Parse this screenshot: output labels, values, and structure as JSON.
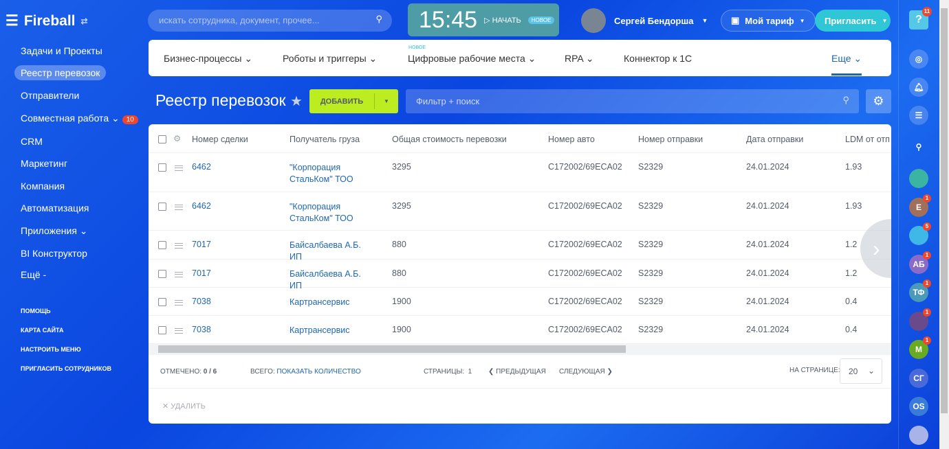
{
  "app": {
    "logo": "Fireball"
  },
  "sidebar": {
    "items": [
      {
        "label": "Задачи и Проекты"
      },
      {
        "label": "Реестр перевозок"
      },
      {
        "label": "Отправители"
      },
      {
        "label": "Совместная работа",
        "badge": "10"
      },
      {
        "label": "CRM"
      },
      {
        "label": "Маркетинг"
      },
      {
        "label": "Компания"
      },
      {
        "label": "Автоматизация"
      },
      {
        "label": "Приложения"
      },
      {
        "label": "BI Конструктор"
      },
      {
        "label": "Ещё -"
      }
    ],
    "links": [
      "ПОМОЩЬ",
      "КАРТА САЙТА",
      "НАСТРОИТЬ МЕНЮ",
      "ПРИГЛАСИТЬ СОТРУДНИКОВ"
    ]
  },
  "header": {
    "search_placeholder": "искать сотрудника, документ, прочее...",
    "time": "15:45",
    "start": "НАЧАТЬ",
    "new_badge": "НОВОЕ",
    "user": "Сергей Бендорша",
    "tariff": "Мой тариф",
    "invite": "Пригласить",
    "help_badge": "11"
  },
  "nav": {
    "items": [
      "Бизнес-процессы",
      "Роботы и триггеры",
      "Цифровые рабочие места",
      "RPA",
      "Коннектор к 1С",
      "Еще"
    ],
    "new_label": "НОВОЕ"
  },
  "page": {
    "title": "Реестр перевозок",
    "add": "ДОБАВИТЬ",
    "filter_placeholder": "Фильтр + поиск"
  },
  "table": {
    "columns": [
      "Номер сделки",
      "Получатель груза",
      "Общая стоимость перевозки",
      "Номер авто",
      "Номер отправки",
      "Дата отправки",
      "LDM от отп"
    ],
    "rows": [
      [
        "6462",
        "\"Корпорация СтальКом\" ТОО",
        "3295",
        "C172002/69ECA02",
        "S2329",
        "24.01.2024",
        "1.93"
      ],
      [
        "6462",
        "\"Корпорация СтальКом\" ТОО",
        "3295",
        "C172002/69ECA02",
        "S2329",
        "24.01.2024",
        "1.93"
      ],
      [
        "7017",
        "Байсалбаева А.Б. ИП",
        "880",
        "C172002/69ECA02",
        "S2329",
        "24.01.2024",
        "1.2"
      ],
      [
        "7017",
        "Байсалбаева А.Б. ИП",
        "880",
        "C172002/69ECA02",
        "S2329",
        "24.01.2024",
        "1.2"
      ],
      [
        "7038",
        "Картрансервис",
        "1900",
        "C172002/69ECA02",
        "S2329",
        "24.01.2024",
        "0.4"
      ],
      [
        "7038",
        "Картрансервис",
        "1900",
        "C172002/69ECA02",
        "S2329",
        "24.01.2024",
        "0.4"
      ]
    ]
  },
  "footer": {
    "marked_label": "ОТМЕЧЕНО:",
    "marked": "0 / 6",
    "total_label": "ВСЕГО:",
    "show_count": "ПОКАЗАТЬ КОЛИЧЕСТВО",
    "pages_label": "СТРАНИЦЫ:",
    "page": "1",
    "prev": "ПРЕДЫДУЩАЯ",
    "next": "СЛЕДУЮЩАЯ",
    "per_page_label": "НА СТРАНИЦЕ:",
    "per_page": "20",
    "delete": "УДАЛИТЬ"
  },
  "right_bar": {
    "avatars": [
      {
        "label": "",
        "color": "#3bb4a4"
      },
      {
        "label": "E",
        "badge": "1",
        "color": "#a0705a"
      },
      {
        "label": "",
        "badge": "5",
        "color": "#3fb8e8"
      },
      {
        "label": "АБ",
        "badge": "1",
        "color": "#8a6cc8"
      },
      {
        "label": "ТФ",
        "badge": "1",
        "color": "#4a9ab8"
      },
      {
        "label": "",
        "badge": "1",
        "color": "#6a4a8a"
      },
      {
        "label": "M",
        "badge": "1",
        "color": "#6aaa20"
      },
      {
        "label": "СГ",
        "color": "#4a6ad8"
      },
      {
        "label": "OS",
        "color": "#3a7ad8"
      },
      {
        "label": "",
        "color": "#a8b4e8"
      }
    ]
  }
}
